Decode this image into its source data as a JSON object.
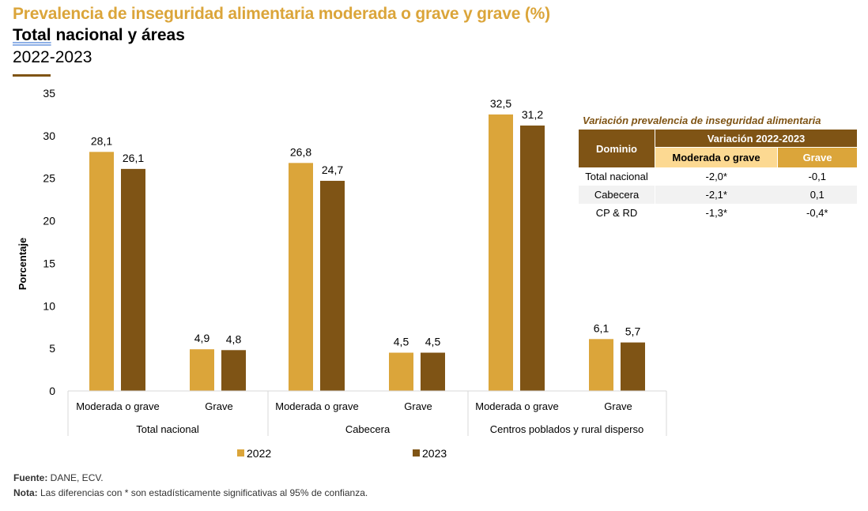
{
  "header": {
    "title": "Prevalencia de inseguridad alimentaria moderada o grave y grave (%)",
    "subtitle_first": "Total",
    "subtitle_rest": " nacional y áreas",
    "years": "2022-2023"
  },
  "colors": {
    "series_2022": "#DBA53A",
    "series_2023": "#7F5415",
    "table_header": "#7F5415",
    "table_sub_moderada": "#FCD992",
    "table_sub_grave": "#DBA53A"
  },
  "chart_data": {
    "type": "bar",
    "title": "Prevalencia de inseguridad alimentaria moderada o grave y grave (%)",
    "xlabel": "",
    "ylabel": "Porcentaje",
    "ylim": [
      0,
      35
    ],
    "yticks": [
      0,
      5,
      10,
      15,
      20,
      25,
      30,
      35
    ],
    "grid": false,
    "legend_position": "bottom",
    "groups": [
      "Total nacional",
      "Cabecera",
      "Centros poblados y rural disperso"
    ],
    "subcategories": [
      "Moderada o grave",
      "Grave"
    ],
    "categories": [
      "Total nacional - Moderada o grave",
      "Total nacional - Grave",
      "Cabecera - Moderada o grave",
      "Cabecera - Grave",
      "Centros poblados y rural disperso - Moderada o grave",
      "Centros poblados y rural disperso - Grave"
    ],
    "series": [
      {
        "name": "2022",
        "values": [
          28.1,
          4.9,
          26.8,
          4.5,
          32.5,
          6.1
        ],
        "labels": [
          "28,1",
          "4,9",
          "26,8",
          "4,5",
          "32,5",
          "6,1"
        ]
      },
      {
        "name": "2023",
        "values": [
          26.1,
          4.8,
          24.7,
          4.5,
          31.2,
          5.7
        ],
        "labels": [
          "26,1",
          "4,8",
          "24,7",
          "4,5",
          "31,2",
          "5,7"
        ]
      }
    ]
  },
  "variation_table": {
    "title": "Variación prevalencia de inseguridad alimentaria",
    "col_domain": "Dominio",
    "col_group": "Variación 2022-2023",
    "col_moderada": "Moderada o grave",
    "col_grave": "Grave",
    "rows": [
      {
        "domain": "Total nacional",
        "moderada": "-2,0*",
        "grave": "-0,1"
      },
      {
        "domain": "Cabecera",
        "moderada": "-2,1*",
        "grave": "0,1"
      },
      {
        "domain": "CP & RD",
        "moderada": "-1,3*",
        "grave": "-0,4*"
      }
    ]
  },
  "footer": {
    "source_label": "Fuente:",
    "source_text": " DANE, ECV.",
    "note_label": "Nota:",
    "note_text": " Las diferencias con * son estadísticamente significativas al 95% de confianza."
  }
}
